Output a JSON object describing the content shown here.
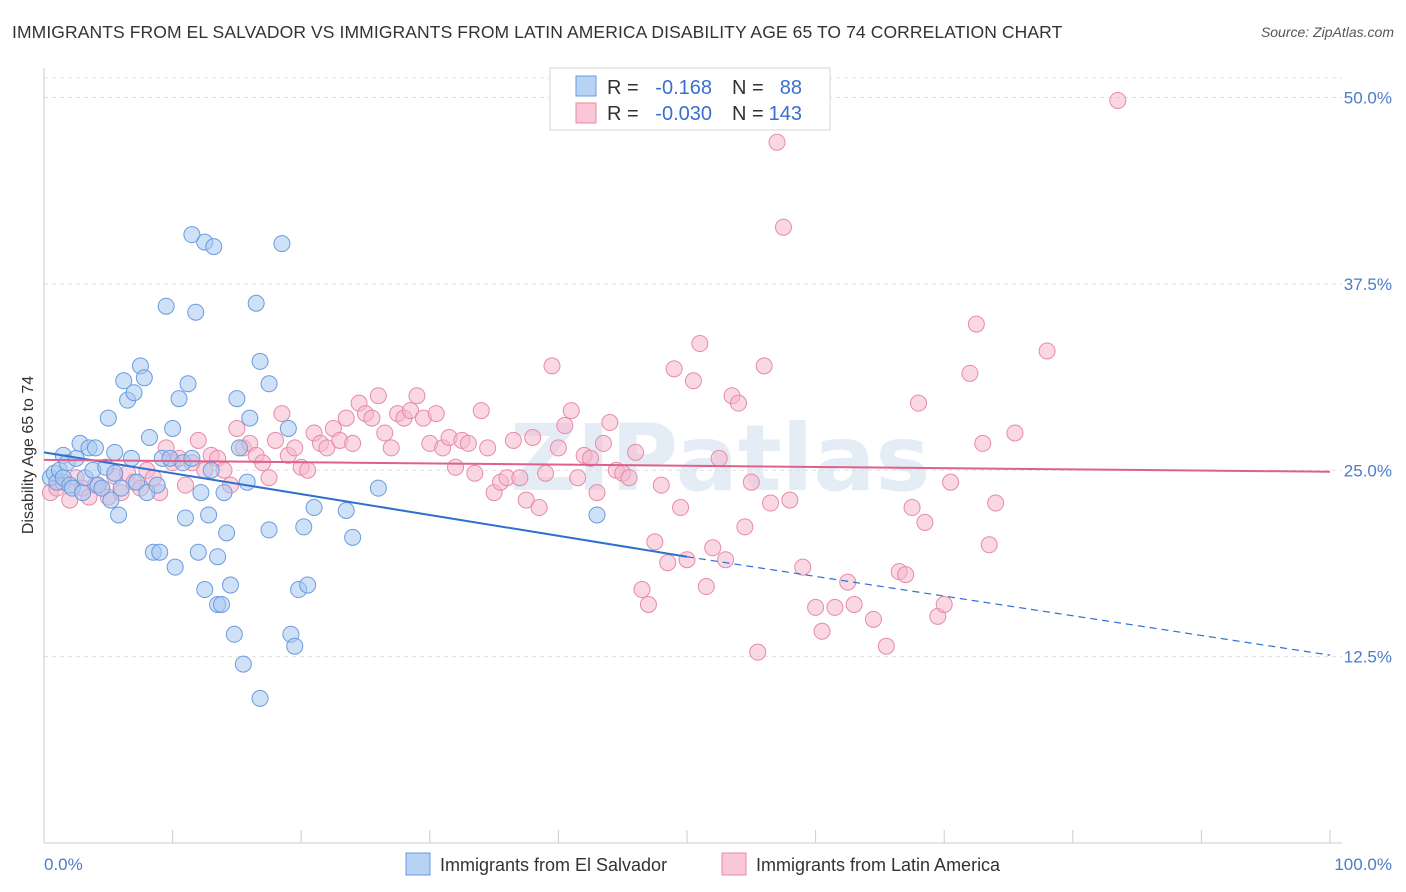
{
  "title": "IMMIGRANTS FROM EL SALVADOR VS IMMIGRANTS FROM LATIN AMERICA DISABILITY AGE 65 TO 74 CORRELATION CHART",
  "source": "Source: ZipAtlas.com",
  "watermark": "ZIPatlas",
  "legend": {
    "r_label": "R =",
    "n_label": "N =",
    "row1": {
      "r": "-0.168",
      "n": "88"
    },
    "row2": {
      "r": "-0.030",
      "n": "143"
    }
  },
  "colors": {
    "blue_fill": "#a8c8f0",
    "blue_stroke": "#6b9be0",
    "blue_line": "#2f6fcf",
    "pink_fill": "#f6b8cc",
    "pink_stroke": "#e88aa8",
    "pink_line": "#e0608c",
    "tick_label": "#4a7cc9",
    "grid": "#e0e0e0"
  },
  "chart_data": {
    "type": "scatter",
    "title": "IMMIGRANTS FROM EL SALVADOR VS IMMIGRANTS FROM LATIN AMERICA DISABILITY AGE 65 TO 74 CORRELATION CHART",
    "xlabel": "",
    "ylabel": "Disability Age 65 to 74",
    "xlim": [
      0,
      100
    ],
    "ylim": [
      0,
      51
    ],
    "x_tick_labels": [
      "0.0%",
      "100.0%"
    ],
    "y_ticks": [
      12.5,
      25.0,
      37.5,
      50.0
    ],
    "y_tick_labels": [
      "12.5%",
      "25.0%",
      "37.5%",
      "50.0%"
    ],
    "grid": "horizontal dashed",
    "legend_position": "top-center",
    "series": [
      {
        "name": "Immigrants from El Salvador",
        "R": -0.168,
        "N": 88,
        "trend": {
          "x": [
            0,
            50
          ],
          "y": [
            26.2,
            19.2
          ],
          "dashed_to": [
            100,
            12.6
          ]
        },
        "points": [
          [
            0.5,
            24.5
          ],
          [
            0.8,
            24.8
          ],
          [
            1.0,
            24.2
          ],
          [
            1.2,
            25.0
          ],
          [
            1.5,
            26.0
          ],
          [
            1.5,
            24.5
          ],
          [
            1.8,
            25.5
          ],
          [
            2.0,
            24.0
          ],
          [
            2.2,
            23.8
          ],
          [
            2.5,
            25.8
          ],
          [
            2.8,
            26.8
          ],
          [
            3.0,
            23.5
          ],
          [
            3.2,
            24.5
          ],
          [
            3.5,
            26.5
          ],
          [
            3.8,
            25.0
          ],
          [
            4.0,
            26.5
          ],
          [
            4.2,
            24.0
          ],
          [
            4.5,
            23.8
          ],
          [
            4.8,
            25.2
          ],
          [
            5.0,
            28.5
          ],
          [
            5.2,
            23.0
          ],
          [
            5.5,
            24.8
          ],
          [
            5.5,
            26.2
          ],
          [
            5.8,
            22.0
          ],
          [
            6.0,
            23.8
          ],
          [
            6.2,
            31.0
          ],
          [
            6.5,
            29.7
          ],
          [
            6.8,
            25.8
          ],
          [
            7.0,
            30.2
          ],
          [
            7.2,
            24.2
          ],
          [
            7.5,
            32.0
          ],
          [
            7.8,
            31.2
          ],
          [
            8.0,
            23.5
          ],
          [
            8.2,
            27.2
          ],
          [
            8.5,
            19.5
          ],
          [
            8.8,
            24.0
          ],
          [
            9.0,
            19.5
          ],
          [
            9.2,
            25.8
          ],
          [
            9.5,
            36.0
          ],
          [
            9.8,
            25.8
          ],
          [
            10.0,
            27.8
          ],
          [
            10.2,
            18.5
          ],
          [
            10.5,
            29.8
          ],
          [
            10.8,
            25.5
          ],
          [
            11.0,
            21.8
          ],
          [
            11.2,
            30.8
          ],
          [
            11.5,
            25.8
          ],
          [
            11.5,
            40.8
          ],
          [
            11.8,
            35.6
          ],
          [
            12.0,
            19.5
          ],
          [
            12.2,
            23.5
          ],
          [
            12.5,
            40.3
          ],
          [
            12.5,
            17.0
          ],
          [
            12.8,
            22.0
          ],
          [
            13.0,
            25.0
          ],
          [
            13.2,
            40.0
          ],
          [
            13.5,
            19.2
          ],
          [
            13.5,
            16.0
          ],
          [
            13.8,
            16.0
          ],
          [
            14.0,
            23.5
          ],
          [
            14.2,
            20.8
          ],
          [
            14.5,
            17.3
          ],
          [
            14.8,
            14.0
          ],
          [
            15.0,
            29.8
          ],
          [
            15.2,
            26.5
          ],
          [
            15.5,
            12.0
          ],
          [
            15.8,
            24.2
          ],
          [
            16.0,
            28.5
          ],
          [
            16.5,
            36.2
          ],
          [
            16.8,
            32.3
          ],
          [
            16.8,
            9.7
          ],
          [
            17.5,
            30.8
          ],
          [
            17.5,
            21.0
          ],
          [
            18.5,
            40.2
          ],
          [
            19.0,
            27.8
          ],
          [
            19.2,
            14.0
          ],
          [
            19.5,
            13.2
          ],
          [
            19.8,
            17.0
          ],
          [
            20.2,
            21.2
          ],
          [
            20.5,
            17.3
          ],
          [
            21.0,
            22.5
          ],
          [
            23.5,
            22.3
          ],
          [
            24.0,
            20.5
          ],
          [
            26.0,
            23.8
          ],
          [
            43.0,
            22.0
          ]
        ]
      },
      {
        "name": "Immigrants from Latin America",
        "R": -0.03,
        "N": 143,
        "trend": {
          "x": [
            0,
            100
          ],
          "y": [
            25.7,
            24.9
          ]
        },
        "points": [
          [
            0.5,
            23.5
          ],
          [
            1.0,
            23.8
          ],
          [
            1.5,
            24.2
          ],
          [
            2.0,
            23.0
          ],
          [
            2.5,
            24.5
          ],
          [
            3.0,
            23.8
          ],
          [
            3.5,
            23.2
          ],
          [
            4.0,
            24.0
          ],
          [
            4.5,
            23.8
          ],
          [
            5.0,
            23.2
          ],
          [
            5.5,
            24.6
          ],
          [
            6.0,
            23.5
          ],
          [
            6.5,
            24.8
          ],
          [
            7.0,
            24.2
          ],
          [
            7.5,
            23.8
          ],
          [
            8.0,
            25.0
          ],
          [
            8.5,
            24.5
          ],
          [
            9.0,
            23.5
          ],
          [
            9.5,
            26.5
          ],
          [
            10.0,
            25.5
          ],
          [
            10.5,
            25.8
          ],
          [
            11.0,
            24.0
          ],
          [
            11.5,
            25.5
          ],
          [
            12.0,
            27.0
          ],
          [
            12.5,
            25.0
          ],
          [
            13.0,
            26.0
          ],
          [
            13.5,
            25.8
          ],
          [
            14.0,
            25.0
          ],
          [
            14.5,
            24.0
          ],
          [
            15.0,
            27.8
          ],
          [
            15.5,
            26.5
          ],
          [
            16.0,
            26.8
          ],
          [
            16.5,
            26.0
          ],
          [
            17.0,
            25.5
          ],
          [
            17.5,
            24.5
          ],
          [
            18.0,
            27.0
          ],
          [
            18.5,
            28.8
          ],
          [
            19.0,
            26.0
          ],
          [
            19.5,
            26.5
          ],
          [
            20.0,
            25.2
          ],
          [
            20.5,
            25.0
          ],
          [
            21.0,
            27.5
          ],
          [
            21.5,
            26.8
          ],
          [
            22.0,
            26.5
          ],
          [
            22.5,
            27.8
          ],
          [
            23.0,
            27.0
          ],
          [
            23.5,
            28.5
          ],
          [
            24.0,
            26.8
          ],
          [
            24.5,
            29.5
          ],
          [
            25.0,
            28.8
          ],
          [
            25.5,
            28.5
          ],
          [
            26.0,
            30.0
          ],
          [
            26.5,
            27.5
          ],
          [
            27.0,
            26.5
          ],
          [
            27.5,
            28.8
          ],
          [
            28.0,
            28.5
          ],
          [
            28.5,
            29.0
          ],
          [
            29.0,
            30.0
          ],
          [
            29.5,
            28.5
          ],
          [
            30.0,
            26.8
          ],
          [
            30.5,
            28.8
          ],
          [
            31.0,
            26.5
          ],
          [
            31.5,
            27.2
          ],
          [
            32.0,
            25.2
          ],
          [
            32.5,
            27.0
          ],
          [
            33.0,
            26.8
          ],
          [
            33.5,
            24.8
          ],
          [
            34.0,
            29.0
          ],
          [
            34.5,
            26.5
          ],
          [
            35.0,
            23.5
          ],
          [
            35.5,
            24.2
          ],
          [
            36.0,
            24.5
          ],
          [
            36.5,
            27.0
          ],
          [
            37.0,
            24.5
          ],
          [
            37.5,
            23.0
          ],
          [
            38.0,
            27.2
          ],
          [
            38.5,
            22.5
          ],
          [
            39.0,
            24.8
          ],
          [
            39.5,
            32.0
          ],
          [
            40.0,
            26.5
          ],
          [
            40.5,
            28.0
          ],
          [
            41.0,
            29.0
          ],
          [
            41.5,
            24.5
          ],
          [
            42.0,
            26.0
          ],
          [
            42.5,
            25.8
          ],
          [
            43.0,
            23.5
          ],
          [
            43.5,
            26.8
          ],
          [
            44.0,
            28.2
          ],
          [
            44.5,
            25.0
          ],
          [
            45.0,
            24.8
          ],
          [
            45.5,
            24.5
          ],
          [
            46.0,
            26.2
          ],
          [
            46.5,
            17.0
          ],
          [
            47.0,
            16.0
          ],
          [
            47.5,
            20.2
          ],
          [
            48.0,
            24.0
          ],
          [
            48.5,
            18.8
          ],
          [
            49.0,
            31.8
          ],
          [
            49.5,
            22.5
          ],
          [
            50.0,
            19.0
          ],
          [
            50.5,
            31.0
          ],
          [
            51.0,
            33.5
          ],
          [
            51.5,
            17.2
          ],
          [
            52.0,
            19.8
          ],
          [
            52.5,
            25.8
          ],
          [
            53.0,
            19.0
          ],
          [
            53.5,
            30.0
          ],
          [
            54.0,
            29.5
          ],
          [
            54.5,
            21.2
          ],
          [
            55.0,
            24.2
          ],
          [
            55.5,
            12.8
          ],
          [
            56.0,
            32.0
          ],
          [
            56.5,
            22.8
          ],
          [
            57.0,
            47.0
          ],
          [
            57.5,
            41.3
          ],
          [
            58.0,
            23.0
          ],
          [
            59.0,
            18.5
          ],
          [
            60.0,
            15.8
          ],
          [
            60.5,
            14.2
          ],
          [
            61.5,
            15.8
          ],
          [
            62.5,
            17.5
          ],
          [
            63.0,
            16.0
          ],
          [
            64.5,
            15.0
          ],
          [
            65.5,
            13.2
          ],
          [
            66.5,
            18.2
          ],
          [
            67.0,
            18.0
          ],
          [
            67.5,
            22.5
          ],
          [
            68.0,
            29.5
          ],
          [
            68.5,
            21.5
          ],
          [
            69.5,
            15.2
          ],
          [
            70.0,
            16.0
          ],
          [
            70.5,
            24.2
          ],
          [
            72.0,
            31.5
          ],
          [
            72.5,
            34.8
          ],
          [
            73.0,
            26.8
          ],
          [
            73.5,
            20.0
          ],
          [
            74.0,
            22.8
          ],
          [
            75.5,
            27.5
          ],
          [
            78.0,
            33.0
          ],
          [
            83.5,
            49.8
          ]
        ]
      }
    ]
  },
  "bottom_legend": {
    "item1": "Immigrants from El Salvador",
    "item2": "Immigrants from Latin America"
  }
}
